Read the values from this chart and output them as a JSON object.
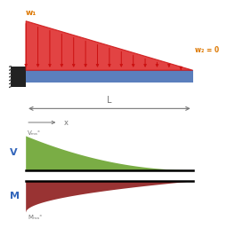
{
  "bg_color": "#ffffff",
  "beam_color": "#5b7fbd",
  "load_color": "#cc1111",
  "load_fill": "#dd2222",
  "arrow_color": "#cc1111",
  "wall_color": "#222222",
  "hatch_color": "#444444",
  "w1_label": "w₁",
  "w2_label": "w₂ = 0",
  "L_label": "L",
  "x_label": "x",
  "Vmax_label": "Vₘₐˣ",
  "Mmax_label": "Mₘₐˣ",
  "V_label": "V",
  "M_label": "M",
  "label_color_orange": "#dd7700",
  "label_color_blue": "#3366bb",
  "label_color_gray": "#777777",
  "green_fill": "#7aad45",
  "red_fill": "#993333",
  "n_arrows": 15
}
